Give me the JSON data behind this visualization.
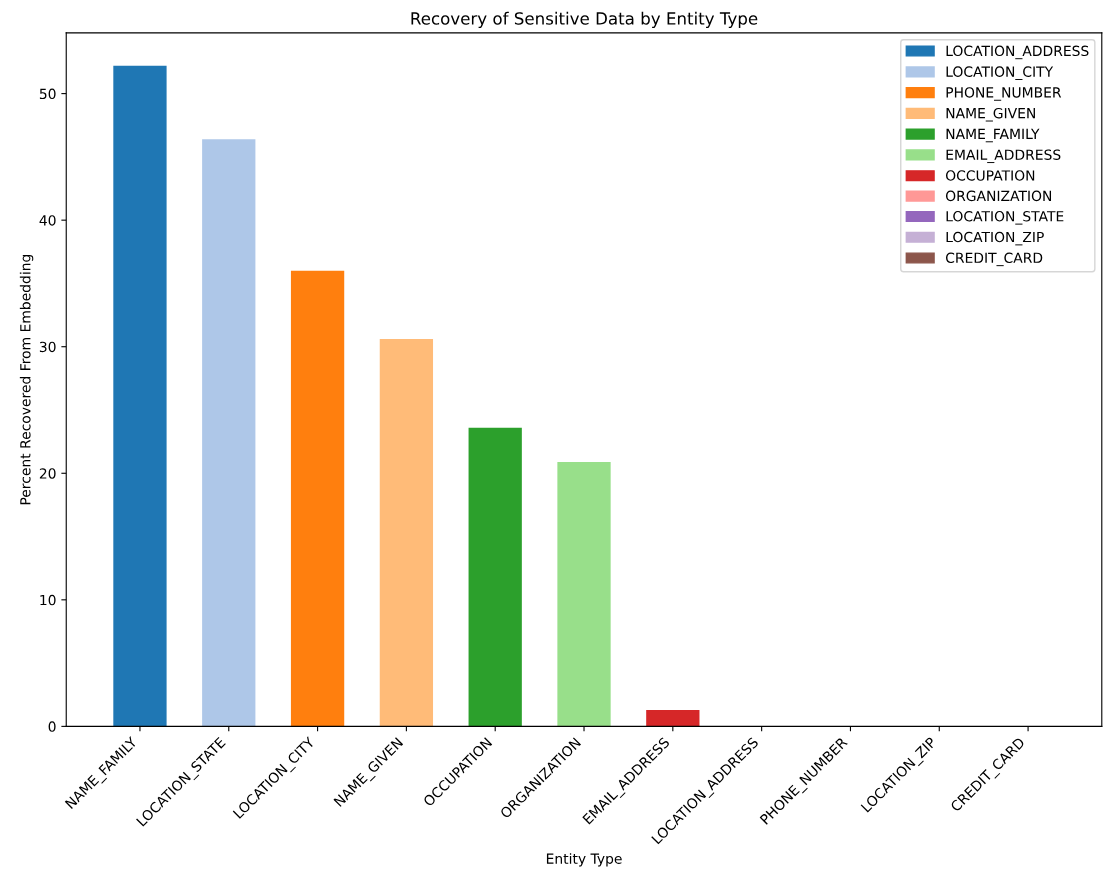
{
  "chart_data": {
    "type": "bar",
    "title": "Recovery of Sensitive Data by Entity Type",
    "xlabel": "Entity Type",
    "ylabel": "Percent Recovered From Embedding",
    "categories": [
      "NAME_FAMILY",
      "LOCATION_STATE",
      "LOCATION_CITY",
      "NAME_GIVEN",
      "OCCUPATION",
      "ORGANIZATION",
      "EMAIL_ADDRESS",
      "LOCATION_ADDRESS",
      "PHONE_NUMBER",
      "LOCATION_ZIP",
      "CREDIT_CARD"
    ],
    "series": [
      {
        "name": "LOCATION_ADDRESS",
        "color": "#1f77b4",
        "values": [
          52.2,
          null,
          null,
          null,
          null,
          null,
          null,
          null,
          null,
          null,
          null
        ]
      },
      {
        "name": "LOCATION_CITY",
        "color": "#aec7e8",
        "values": [
          null,
          46.4,
          null,
          null,
          null,
          null,
          null,
          null,
          null,
          null,
          null
        ]
      },
      {
        "name": "PHONE_NUMBER",
        "color": "#ff7f0e",
        "values": [
          null,
          null,
          36.0,
          null,
          null,
          null,
          null,
          null,
          null,
          null,
          null
        ]
      },
      {
        "name": "NAME_GIVEN",
        "color": "#ffbb78",
        "values": [
          null,
          null,
          null,
          30.6,
          null,
          null,
          null,
          null,
          null,
          null,
          null
        ]
      },
      {
        "name": "NAME_FAMILY",
        "color": "#2ca02c",
        "values": [
          null,
          null,
          null,
          null,
          23.6,
          null,
          null,
          null,
          null,
          null,
          null
        ]
      },
      {
        "name": "EMAIL_ADDRESS",
        "color": "#98df8a",
        "values": [
          null,
          null,
          null,
          null,
          null,
          20.9,
          null,
          null,
          null,
          null,
          null
        ]
      },
      {
        "name": "OCCUPATION",
        "color": "#d62728",
        "values": [
          null,
          null,
          null,
          null,
          null,
          null,
          1.3,
          null,
          null,
          null,
          null
        ]
      },
      {
        "name": "ORGANIZATION",
        "color": "#ff9896",
        "values": [
          null,
          null,
          null,
          null,
          null,
          null,
          null,
          0,
          null,
          null,
          null
        ]
      },
      {
        "name": "LOCATION_STATE",
        "color": "#9467bd",
        "values": [
          null,
          null,
          null,
          null,
          null,
          null,
          null,
          null,
          0,
          null,
          null
        ]
      },
      {
        "name": "LOCATION_ZIP",
        "color": "#c5b0d5",
        "values": [
          null,
          null,
          null,
          null,
          null,
          null,
          null,
          null,
          null,
          0,
          null
        ]
      },
      {
        "name": "CREDIT_CARD",
        "color": "#8c564b",
        "values": [
          null,
          null,
          null,
          null,
          null,
          null,
          null,
          null,
          null,
          null,
          0
        ]
      }
    ],
    "ylim": [
      0,
      54.8
    ],
    "yticks": [
      0,
      10,
      20,
      30,
      40,
      50
    ],
    "grid": false,
    "legend": "top right"
  }
}
